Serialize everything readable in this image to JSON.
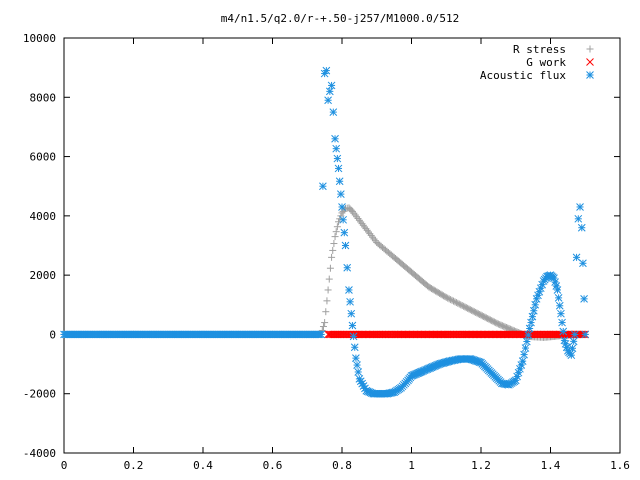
{
  "chart_data": {
    "type": "scatter",
    "title": "m4/n1.5/q2.0/r-+.50-j257/M1000.0/512",
    "xlabel": "",
    "ylabel": "",
    "xlim": [
      0,
      1.6
    ],
    "ylim": [
      -4000,
      10000
    ],
    "x_ticks": [
      0,
      0.2,
      0.4,
      0.6,
      0.8,
      1,
      1.2,
      1.4,
      1.6
    ],
    "x_tick_labels": [
      "0",
      "0.2",
      "0.4",
      "0.6",
      "0.8",
      "1",
      "1.2",
      "1.4",
      "1.6"
    ],
    "y_ticks": [
      -4000,
      -2000,
      0,
      2000,
      4000,
      6000,
      8000,
      10000
    ],
    "y_tick_labels": [
      "-4000",
      "-2000",
      "0",
      "2000",
      "4000",
      "6000",
      "8000",
      "10000"
    ],
    "grid": false,
    "legend_position": "top-right",
    "series": [
      {
        "name": "R stress",
        "marker": "plus",
        "color": "#a0a0a0",
        "x": [
          0.0,
          0.1,
          0.2,
          0.3,
          0.4,
          0.5,
          0.6,
          0.7,
          0.74,
          0.75,
          0.76,
          0.77,
          0.78,
          0.79,
          0.8,
          0.81,
          0.82,
          0.83,
          0.85,
          0.88,
          0.9,
          0.95,
          1.0,
          1.05,
          1.1,
          1.15,
          1.2,
          1.25,
          1.3,
          1.33,
          1.35,
          1.38,
          1.4,
          1.43,
          1.46,
          1.48,
          1.5
        ],
        "y": [
          0,
          0,
          0,
          0,
          0,
          0,
          0,
          0,
          0,
          400,
          1500,
          2600,
          3300,
          3800,
          4100,
          4250,
          4270,
          4150,
          3850,
          3400,
          3100,
          2600,
          2100,
          1600,
          1250,
          950,
          650,
          350,
          100,
          -50,
          -80,
          -100,
          -80,
          -40,
          -20,
          0,
          0
        ]
      },
      {
        "name": "G work",
        "marker": "cross",
        "color": "#ff0000",
        "x": [
          0.76,
          0.8,
          0.85,
          0.9,
          0.95,
          1.0,
          1.05,
          1.1,
          1.15,
          1.2,
          1.25,
          1.3,
          1.35,
          1.4,
          1.45,
          1.5
        ],
        "y": [
          0,
          0,
          0,
          0,
          0,
          0,
          0,
          0,
          0,
          0,
          0,
          0,
          0,
          0,
          0,
          0
        ]
      },
      {
        "name": "Acoustic flux",
        "marker": "asterisk",
        "color": "#1e90e0",
        "x": [
          0.0,
          0.1,
          0.2,
          0.3,
          0.4,
          0.5,
          0.6,
          0.7,
          0.74,
          0.745,
          0.75,
          0.755,
          0.76,
          0.765,
          0.77,
          0.775,
          0.78,
          0.79,
          0.8,
          0.81,
          0.82,
          0.83,
          0.84,
          0.85,
          0.87,
          0.89,
          0.91,
          0.93,
          0.95,
          0.97,
          0.99,
          1.0,
          1.01,
          1.02,
          1.03,
          1.05,
          1.08,
          1.11,
          1.14,
          1.17,
          1.2,
          1.23,
          1.26,
          1.28,
          1.3,
          1.32,
          1.34,
          1.36,
          1.38,
          1.39,
          1.4,
          1.41,
          1.42,
          1.43,
          1.44,
          1.45,
          1.46,
          1.47,
          1.475,
          1.48,
          1.485,
          1.49,
          1.5
        ],
        "y": [
          0,
          0,
          0,
          0,
          0,
          0,
          0,
          0,
          0,
          5000,
          8800,
          8900,
          7900,
          8200,
          8400,
          7500,
          6600,
          5600,
          4300,
          3000,
          1500,
          300,
          -800,
          -1500,
          -1900,
          -2000,
          -2000,
          -2000,
          -1950,
          -1800,
          -1550,
          -1400,
          -1350,
          -1300,
          -1250,
          -1150,
          -1000,
          -900,
          -830,
          -830,
          -950,
          -1300,
          -1650,
          -1700,
          -1550,
          -900,
          200,
          1200,
          1800,
          1950,
          2000,
          1900,
          1500,
          700,
          -200,
          -550,
          -700,
          0,
          2600,
          3900,
          4300,
          3600,
          0
        ]
      }
    ]
  }
}
